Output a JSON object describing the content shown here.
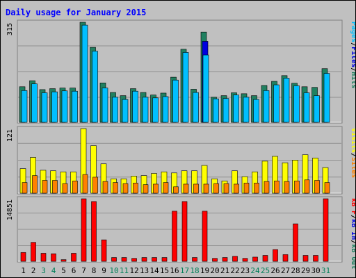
{
  "chart_data": {
    "type": "bar",
    "title": "Daily usage for January 2015",
    "categories": [
      "1",
      "2",
      "3",
      "4",
      "5",
      "6",
      "7",
      "8",
      "9",
      "10",
      "11",
      "12",
      "13",
      "14",
      "15",
      "16",
      "17",
      "18",
      "19",
      "20",
      "21",
      "22",
      "23",
      "24",
      "25",
      "26",
      "27",
      "28",
      "29",
      "30",
      "31"
    ],
    "weekend_days": [
      "3",
      "4",
      "10",
      "11",
      "17",
      "18",
      "24",
      "25",
      "31"
    ],
    "panels": [
      {
        "id": "hits",
        "max_label": "315",
        "ymax": 315,
        "legend": [
          "Pages",
          "/",
          "Files",
          "/",
          "Hits"
        ],
        "series": [
          {
            "name": "Hits",
            "color": "#208060",
            "values": [
              112,
              131,
              103,
              106,
              108,
              108,
              315,
              236,
              124,
              94,
              84,
              106,
              94,
              86,
              92,
              142,
              230,
              104,
              284,
              79,
              84,
              93,
              90,
              84,
              116,
              129,
              147,
              123,
              112,
              110,
              169
            ]
          },
          {
            "name": "Files",
            "color": "#0000e0",
            "values": [
              0,
              0,
              0,
              0,
              0,
              0,
              0,
              0,
              0,
              0,
              0,
              0,
              0,
              0,
              0,
              0,
              0,
              0,
              255,
              0,
              0,
              0,
              0,
              0,
              0,
              0,
              0,
              0,
              0,
              0,
              0
            ]
          },
          {
            "name": "Pages",
            "color": "#00bfff",
            "values": [
              100,
              121,
              93,
              96,
              99,
              98,
              306,
              224,
              108,
              79,
              72,
              98,
              79,
              77,
              81,
              133,
              220,
              94,
              212,
              74,
              75,
              86,
              79,
              72,
              100,
              118,
              139,
              115,
              93,
              84,
              154
            ]
          }
        ]
      },
      {
        "id": "visits",
        "max_label": "121",
        "ymax": 121,
        "legend": [
          "Visits",
          "/",
          "Sites"
        ],
        "series": [
          {
            "name": "Visits",
            "color": "#ffff00",
            "values": [
              46,
              67,
              43,
              42,
              40,
              40,
              121,
              89,
              55,
              27,
              27,
              32,
              33,
              37,
              40,
              38,
              42,
              42,
              52,
              27,
              23,
              42,
              31,
              40,
              60,
              69,
              57,
              62,
              72,
              66,
              48
            ]
          },
          {
            "name": "Sites",
            "color": "#ff8000",
            "values": [
              20,
              33,
              24,
              24,
              18,
              23,
              35,
              30,
              22,
              20,
              18,
              19,
              16,
              17,
              20,
              12,
              17,
              17,
              17,
              18,
              18,
              17,
              19,
              19,
              22,
              23,
              22,
              23,
              25,
              24,
              20
            ]
          }
        ]
      },
      {
        "id": "kbytes",
        "max_label": "14851",
        "ymax": 14851,
        "legend": [
          "kB F",
          "/",
          "kB In",
          "/",
          "kB Out"
        ],
        "series": [
          {
            "name": "kB F",
            "color": "#ff0000",
            "values": [
              2100,
              4500,
              1900,
              1800,
              400,
              1900,
              14851,
              14200,
              5100,
              900,
              900,
              700,
              900,
              900,
              900,
              11900,
              14200,
              900,
              11900,
              700,
              900,
              1200,
              700,
              1000,
              1400,
              2800,
              1600,
              8900,
              1400,
              1400,
              14851
            ]
          }
        ]
      }
    ]
  }
}
